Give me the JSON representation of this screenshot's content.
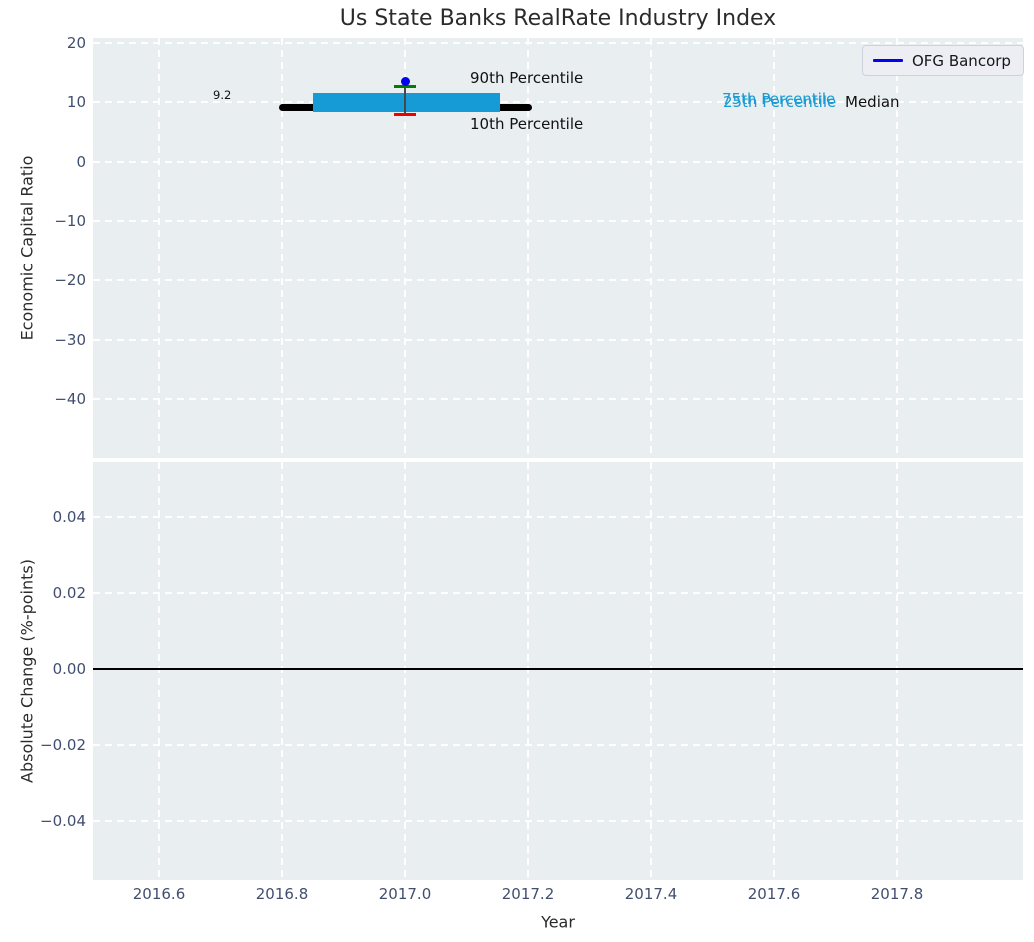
{
  "figure": {
    "title": "Us State Banks RealRate Industry Index",
    "xlabel": "Year"
  },
  "legend": {
    "label": "OFG Bancorp"
  },
  "xticks": [
    "2016.6",
    "2016.8",
    "2017.0",
    "2017.2",
    "2017.4",
    "2017.6",
    "2017.8"
  ],
  "top_plot": {
    "ylabel": "Economic Capital Ratio",
    "yticks": [
      "20",
      "10",
      "0",
      "−10",
      "−20",
      "−30",
      "−40"
    ],
    "annotations": {
      "p90": "90th Percentile",
      "p10": "10th Percentile",
      "p75": "75th Percentile",
      "p25": "25th Percentile",
      "median": "Median",
      "median_value": "9.2"
    }
  },
  "bottom_plot": {
    "ylabel": "Absolute Change (%-points)",
    "yticks": [
      "0.04",
      "0.02",
      "0.00",
      "−0.02",
      "−0.04"
    ]
  },
  "colors": {
    "plot_bg": "#e9eef0",
    "grid": "#ffffff",
    "series_blue": "#0202eb",
    "iqr_cyan": "#179bd6",
    "p90_green": "#007d02",
    "p10_red": "#f10000",
    "median_black": "#000000",
    "tick_text": "#414e6e"
  },
  "chart_data": [
    {
      "type": "scatter",
      "title": "Us State Banks RealRate Industry Index",
      "xlabel": "Year",
      "ylabel": "Economic Capital Ratio",
      "xlim": [
        2016.49,
        2018.0
      ],
      "ylim": [
        -50,
        21
      ],
      "xticks": [
        2016.6,
        2016.8,
        2017.0,
        2017.2,
        2017.4,
        2017.6,
        2017.8
      ],
      "yticks": [
        20,
        10,
        0,
        -10,
        -20,
        -30,
        -40
      ],
      "grid": true,
      "legend_position": "upper right",
      "series": [
        {
          "name": "OFG Bancorp",
          "x": [
            2017.0
          ],
          "y": [
            13.5
          ],
          "marker": "point",
          "color": "#0202eb"
        }
      ],
      "industry_percentiles": {
        "x": 2017.0,
        "p90": 12.7,
        "p75": 11.5,
        "median": 9.2,
        "p25": 8.3,
        "p10": 7.9,
        "median_line_x": [
          2016.8,
          2017.2
        ],
        "iqr_bar_x": [
          2016.85,
          2017.155
        ]
      },
      "annotations": [
        "90th Percentile",
        "10th Percentile",
        "75th Percentile",
        "25th Percentile",
        "Median",
        "9.2"
      ]
    },
    {
      "type": "line",
      "xlabel": "Year",
      "ylabel": "Absolute Change (%-points)",
      "xlim": [
        2016.49,
        2018.0
      ],
      "ylim": [
        -0.055,
        0.055
      ],
      "xticks": [
        2016.6,
        2016.8,
        2017.0,
        2017.2,
        2017.4,
        2017.6,
        2017.8
      ],
      "yticks": [
        0.04,
        0.02,
        0.0,
        -0.02,
        -0.04
      ],
      "grid": true,
      "zero_line_y": 0.0,
      "series": []
    }
  ]
}
